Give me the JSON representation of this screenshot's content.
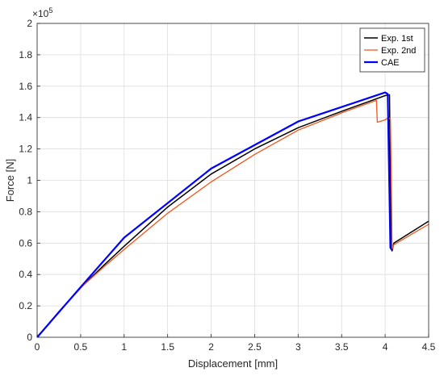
{
  "chart_data": {
    "type": "line",
    "xlabel": "Displacement [mm]",
    "ylabel": "Force [N]",
    "y_exponent_label": "×10",
    "y_exponent_power": "5",
    "xlim": [
      0,
      4.5
    ],
    "ylim": [
      0,
      2
    ],
    "x_ticks": [
      0,
      0.5,
      1,
      1.5,
      2,
      2.5,
      3,
      3.5,
      4,
      4.5
    ],
    "y_ticks": [
      0,
      0.2,
      0.4,
      0.6,
      0.8,
      1,
      1.2,
      1.4,
      1.6,
      1.8,
      2
    ],
    "x_tick_labels": [
      "0",
      "0.5",
      "1",
      "1.5",
      "2",
      "2.5",
      "3",
      "3.5",
      "4",
      "4.5"
    ],
    "y_tick_labels": [
      "0",
      "0.2",
      "0.4",
      "0.6",
      "0.8",
      "1",
      "1.2",
      "1.4",
      "1.6",
      "1.8",
      "2"
    ],
    "grid": true,
    "legend_position": "top-right",
    "series": [
      {
        "name": "Exp. 1st",
        "color": "#000000",
        "points": [
          [
            0,
            0
          ],
          [
            0.25,
            0.16
          ],
          [
            0.5,
            0.315
          ],
          [
            0.75,
            0.45
          ],
          [
            1,
            0.58
          ],
          [
            1.5,
            0.83
          ],
          [
            2,
            1.04
          ],
          [
            2.5,
            1.2
          ],
          [
            3,
            1.335
          ],
          [
            3.5,
            1.44
          ],
          [
            3.8,
            1.5
          ],
          [
            4.0,
            1.54
          ],
          [
            4.05,
            1.545
          ],
          [
            4.06,
            1.0
          ],
          [
            4.07,
            0.6
          ],
          [
            4.08,
            0.55
          ],
          [
            4.1,
            0.6
          ],
          [
            4.3,
            0.67
          ],
          [
            4.5,
            0.74
          ]
        ]
      },
      {
        "name": "Exp. 2nd",
        "color": "#f0561d",
        "points": [
          [
            0,
            0
          ],
          [
            0.25,
            0.165
          ],
          [
            0.5,
            0.315
          ],
          [
            0.75,
            0.44
          ],
          [
            1,
            0.56
          ],
          [
            1.5,
            0.79
          ],
          [
            2,
            0.99
          ],
          [
            2.5,
            1.165
          ],
          [
            3,
            1.32
          ],
          [
            3.5,
            1.43
          ],
          [
            3.9,
            1.51
          ],
          [
            3.91,
            1.37
          ],
          [
            4.0,
            1.385
          ],
          [
            4.04,
            1.4
          ],
          [
            4.06,
            1.39
          ],
          [
            4.07,
            1.0
          ],
          [
            4.08,
            0.56
          ],
          [
            4.1,
            0.59
          ],
          [
            4.3,
            0.655
          ],
          [
            4.5,
            0.72
          ]
        ]
      },
      {
        "name": "CAE",
        "color": "#0000ff",
        "points": [
          [
            0,
            0
          ],
          [
            0.5,
            0.32
          ],
          [
            1,
            0.635
          ],
          [
            2,
            1.075
          ],
          [
            3,
            1.375
          ],
          [
            4,
            1.56
          ],
          [
            4.03,
            1.55
          ],
          [
            4.06,
            0.57
          ],
          [
            4.08,
            0.555
          ]
        ]
      }
    ]
  }
}
